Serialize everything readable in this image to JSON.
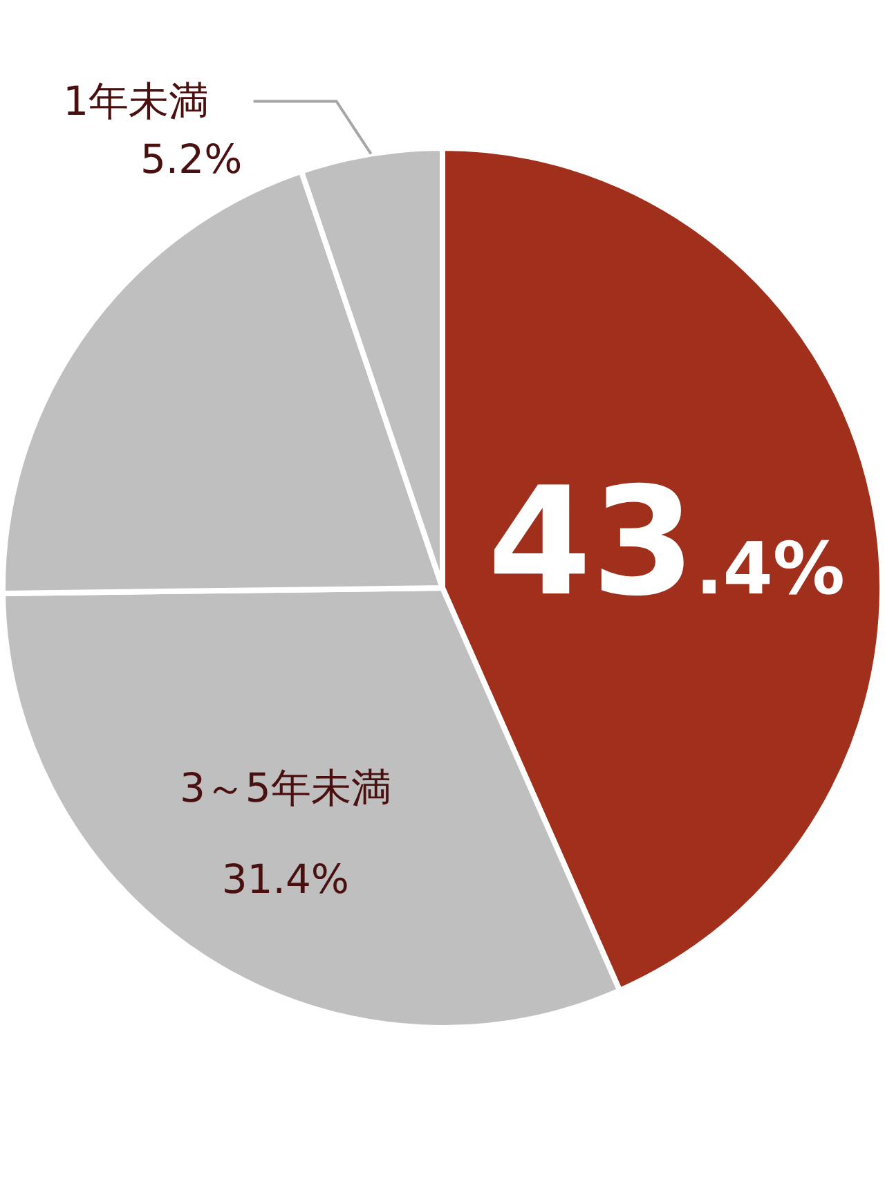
{
  "chart_data": {
    "type": "pie",
    "categories": [
      null,
      "3～5年未満",
      null,
      "1年未満"
    ],
    "values": [
      43.4,
      31.4,
      20.0,
      5.2
    ],
    "colors": [
      "#a0301c",
      "#bfbfbf",
      "#bfbfbf",
      "#bfbfbf"
    ],
    "value_labels": [
      "43.4%",
      "31.4%",
      null,
      "5.2%"
    ]
  }
}
